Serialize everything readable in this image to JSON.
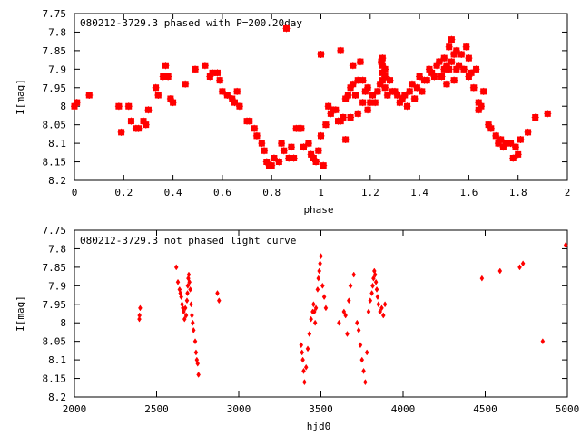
{
  "chart_data": [
    {
      "type": "scatter",
      "title": "080212-3729.3 phased with P=200.20day",
      "xlabel": "phase",
      "ylabel": "I[mag]",
      "xlim": [
        0,
        2
      ],
      "ylim": [
        8.2,
        7.75
      ],
      "y_inverted": true,
      "grid": false,
      "marker_color": "#ff0000",
      "xticks": [
        0,
        0.2,
        0.4,
        0.6,
        0.8,
        1,
        1.2,
        1.4,
        1.6,
        1.8,
        2
      ],
      "xtick_labels": [
        "0",
        "0.2",
        "0.4",
        "0.6",
        "0.8",
        "1",
        "1.2",
        "1.4",
        "1.6",
        "1.8",
        "2"
      ],
      "yticks": [
        7.75,
        7.8,
        7.85,
        7.9,
        7.95,
        8,
        8.05,
        8.1,
        8.15,
        8.2
      ],
      "ytick_labels": [
        "7.75",
        "7.8",
        "7.85",
        "7.9",
        "7.95",
        "8",
        "8.05",
        "8.1",
        "8.15",
        "8.2"
      ],
      "series": [
        {
          "points": [
            [
              0.0,
              8.0
            ],
            [
              0.01,
              7.99
            ],
            [
              0.06,
              7.97
            ],
            [
              0.18,
              8.0
            ],
            [
              0.19,
              8.07
            ],
            [
              0.22,
              8.0
            ],
            [
              0.23,
              8.04
            ],
            [
              0.25,
              8.06
            ],
            [
              0.26,
              8.06
            ],
            [
              0.28,
              8.04
            ],
            [
              0.29,
              8.05
            ],
            [
              0.3,
              8.01
            ],
            [
              0.33,
              7.95
            ],
            [
              0.34,
              7.97
            ],
            [
              0.36,
              7.92
            ],
            [
              0.37,
              7.89
            ],
            [
              0.38,
              7.92
            ],
            [
              0.39,
              7.98
            ],
            [
              0.4,
              7.99
            ],
            [
              0.45,
              7.94
            ],
            [
              0.49,
              7.9
            ],
            [
              0.53,
              7.89
            ],
            [
              0.55,
              7.92
            ],
            [
              0.56,
              7.91
            ],
            [
              0.58,
              7.91
            ],
            [
              0.59,
              7.93
            ],
            [
              0.6,
              7.96
            ],
            [
              0.62,
              7.97
            ],
            [
              0.64,
              7.98
            ],
            [
              0.65,
              7.99
            ],
            [
              0.66,
              7.96
            ],
            [
              0.67,
              8.0
            ],
            [
              0.7,
              8.04
            ],
            [
              0.71,
              8.04
            ],
            [
              0.73,
              8.06
            ],
            [
              0.74,
              8.08
            ],
            [
              0.76,
              8.1
            ],
            [
              0.77,
              8.12
            ],
            [
              0.78,
              8.15
            ],
            [
              0.79,
              8.16
            ],
            [
              0.8,
              8.16
            ],
            [
              0.81,
              8.14
            ],
            [
              0.83,
              8.15
            ],
            [
              0.84,
              8.1
            ],
            [
              0.85,
              8.12
            ],
            [
              0.86,
              7.79
            ],
            [
              0.87,
              8.14
            ],
            [
              0.88,
              8.11
            ],
            [
              0.89,
              8.14
            ],
            [
              0.9,
              8.06
            ],
            [
              0.91,
              8.06
            ],
            [
              0.92,
              8.06
            ],
            [
              0.93,
              8.11
            ],
            [
              0.95,
              8.1
            ],
            [
              0.96,
              8.13
            ],
            [
              0.97,
              8.14
            ],
            [
              0.98,
              8.15
            ],
            [
              0.99,
              8.12
            ],
            [
              1.0,
              7.86
            ],
            [
              1.0,
              8.08
            ],
            [
              1.01,
              8.16
            ],
            [
              1.02,
              8.05
            ],
            [
              1.03,
              8.0
            ],
            [
              1.04,
              8.02
            ],
            [
              1.05,
              8.01
            ],
            [
              1.06,
              8.01
            ],
            [
              1.07,
              8.04
            ],
            [
              1.08,
              8.04
            ],
            [
              1.08,
              7.85
            ],
            [
              1.09,
              8.03
            ],
            [
              1.1,
              7.98
            ],
            [
              1.1,
              8.09
            ],
            [
              1.11,
              7.97
            ],
            [
              1.12,
              7.95
            ],
            [
              1.12,
              8.03
            ],
            [
              1.13,
              7.94
            ],
            [
              1.13,
              7.89
            ],
            [
              1.14,
              7.97
            ],
            [
              1.15,
              7.93
            ],
            [
              1.15,
              8.02
            ],
            [
              1.16,
              7.88
            ],
            [
              1.17,
              7.99
            ],
            [
              1.17,
              7.93
            ],
            [
              1.18,
              7.96
            ],
            [
              1.19,
              7.95
            ],
            [
              1.19,
              8.01
            ],
            [
              1.2,
              7.99
            ],
            [
              1.21,
              7.97
            ],
            [
              1.22,
              7.99
            ],
            [
              1.23,
              7.96
            ],
            [
              1.24,
              7.94
            ],
            [
              1.245,
              7.88
            ],
            [
              1.25,
              7.87
            ],
            [
              1.25,
              7.89
            ],
            [
              1.25,
              7.91
            ],
            [
              1.25,
              7.93
            ],
            [
              1.26,
              7.9
            ],
            [
              1.26,
              7.92
            ],
            [
              1.26,
              7.95
            ],
            [
              1.27,
              7.97
            ],
            [
              1.28,
              7.93
            ],
            [
              1.29,
              7.96
            ],
            [
              1.3,
              7.96
            ],
            [
              1.31,
              7.97
            ],
            [
              1.32,
              7.99
            ],
            [
              1.33,
              7.98
            ],
            [
              1.34,
              7.97
            ],
            [
              1.35,
              8.0
            ],
            [
              1.36,
              7.96
            ],
            [
              1.37,
              7.94
            ],
            [
              1.38,
              7.98
            ],
            [
              1.39,
              7.95
            ],
            [
              1.4,
              7.92
            ],
            [
              1.41,
              7.96
            ],
            [
              1.42,
              7.93
            ],
            [
              1.43,
              7.93
            ],
            [
              1.44,
              7.9
            ],
            [
              1.45,
              7.91
            ],
            [
              1.46,
              7.92
            ],
            [
              1.47,
              7.89
            ],
            [
              1.48,
              7.88
            ],
            [
              1.49,
              7.92
            ],
            [
              1.5,
              7.9
            ],
            [
              1.5,
              7.87
            ],
            [
              1.51,
              7.89
            ],
            [
              1.51,
              7.94
            ],
            [
              1.52,
              7.84
            ],
            [
              1.52,
              7.9
            ],
            [
              1.53,
              7.82
            ],
            [
              1.53,
              7.88
            ],
            [
              1.54,
              7.86
            ],
            [
              1.54,
              7.93
            ],
            [
              1.55,
              7.9
            ],
            [
              1.55,
              7.85
            ],
            [
              1.56,
              7.89
            ],
            [
              1.57,
              7.86
            ],
            [
              1.58,
              7.9
            ],
            [
              1.59,
              7.84
            ],
            [
              1.6,
              7.87
            ],
            [
              1.6,
              7.92
            ],
            [
              1.61,
              7.91
            ],
            [
              1.62,
              7.95
            ],
            [
              1.63,
              7.9
            ],
            [
              1.64,
              7.99
            ],
            [
              1.64,
              8.01
            ],
            [
              1.65,
              8.0
            ],
            [
              1.66,
              7.96
            ],
            [
              1.68,
              8.05
            ],
            [
              1.69,
              8.06
            ],
            [
              1.71,
              8.08
            ],
            [
              1.72,
              8.1
            ],
            [
              1.73,
              8.09
            ],
            [
              1.74,
              8.11
            ],
            [
              1.75,
              8.1
            ],
            [
              1.77,
              8.1
            ],
            [
              1.78,
              8.14
            ],
            [
              1.79,
              8.11
            ],
            [
              1.8,
              8.13
            ],
            [
              1.81,
              8.09
            ],
            [
              1.84,
              8.07
            ],
            [
              1.87,
              8.03
            ],
            [
              1.92,
              8.02
            ]
          ]
        }
      ]
    },
    {
      "type": "scatter",
      "title": "080212-3729.3 not phased light curve",
      "xlabel": "hjd0",
      "ylabel": "I[mag]",
      "xlim": [
        2000,
        5000
      ],
      "ylim": [
        8.2,
        7.75
      ],
      "y_inverted": true,
      "grid": false,
      "marker_color": "#ff0000",
      "xticks": [
        2000,
        2500,
        3000,
        3500,
        4000,
        4500,
        5000
      ],
      "xtick_labels": [
        "2000",
        "2500",
        "3000",
        "3500",
        "4000",
        "4500",
        "5000"
      ],
      "yticks": [
        7.75,
        7.8,
        7.85,
        7.9,
        7.95,
        8,
        8.05,
        8.1,
        8.15,
        8.2
      ],
      "ytick_labels": [
        "7.75",
        "7.8",
        "7.85",
        "7.9",
        "7.95",
        "8",
        "8.05",
        "8.1",
        "8.15",
        "8.2"
      ],
      "series": [
        {
          "points": [
            [
              2395,
              7.99
            ],
            [
              2396,
              7.98
            ],
            [
              2400,
              7.96
            ],
            [
              2620,
              7.85
            ],
            [
              2630,
              7.89
            ],
            [
              2640,
              7.91
            ],
            [
              2645,
              7.92
            ],
            [
              2650,
              7.93
            ],
            [
              2655,
              7.95
            ],
            [
              2660,
              7.96
            ],
            [
              2665,
              7.97
            ],
            [
              2670,
              7.99
            ],
            [
              2675,
              7.96
            ],
            [
              2680,
              7.98
            ],
            [
              2685,
              7.94
            ],
            [
              2688,
              7.92
            ],
            [
              2690,
              7.9
            ],
            [
              2693,
              7.88
            ],
            [
              2696,
              7.87
            ],
            [
              2700,
              7.89
            ],
            [
              2705,
              7.91
            ],
            [
              2710,
              7.95
            ],
            [
              2715,
              7.98
            ],
            [
              2720,
              8.0
            ],
            [
              2725,
              8.02
            ],
            [
              2735,
              8.05
            ],
            [
              2740,
              8.08
            ],
            [
              2745,
              8.1
            ],
            [
              2750,
              8.11
            ],
            [
              2755,
              8.14
            ],
            [
              2870,
              7.92
            ],
            [
              2880,
              7.94
            ],
            [
              3380,
              8.06
            ],
            [
              3385,
              8.08
            ],
            [
              3390,
              8.1
            ],
            [
              3395,
              8.13
            ],
            [
              3400,
              8.16
            ],
            [
              3410,
              8.12
            ],
            [
              3420,
              8.07
            ],
            [
              3430,
              8.03
            ],
            [
              3440,
              7.99
            ],
            [
              3450,
              7.97
            ],
            [
              3455,
              7.95
            ],
            [
              3460,
              7.97
            ],
            [
              3465,
              8.0
            ],
            [
              3470,
              7.96
            ],
            [
              3480,
              7.91
            ],
            [
              3485,
              7.88
            ],
            [
              3490,
              7.86
            ],
            [
              3495,
              7.84
            ],
            [
              3500,
              7.82
            ],
            [
              3510,
              7.9
            ],
            [
              3520,
              7.93
            ],
            [
              3530,
              7.96
            ],
            [
              3610,
              8.0
            ],
            [
              3640,
              7.97
            ],
            [
              3650,
              7.98
            ],
            [
              3660,
              8.03
            ],
            [
              3670,
              7.94
            ],
            [
              3680,
              7.9
            ],
            [
              3700,
              7.87
            ],
            [
              3720,
              8.0
            ],
            [
              3730,
              8.02
            ],
            [
              3740,
              8.06
            ],
            [
              3750,
              8.1
            ],
            [
              3760,
              8.13
            ],
            [
              3770,
              8.16
            ],
            [
              3780,
              8.08
            ],
            [
              3790,
              7.97
            ],
            [
              3800,
              7.94
            ],
            [
              3810,
              7.92
            ],
            [
              3815,
              7.9
            ],
            [
              3820,
              7.88
            ],
            [
              3825,
              7.86
            ],
            [
              3830,
              7.87
            ],
            [
              3835,
              7.89
            ],
            [
              3840,
              7.91
            ],
            [
              3845,
              7.93
            ],
            [
              3850,
              7.95
            ],
            [
              3860,
              7.97
            ],
            [
              3870,
              7.96
            ],
            [
              3880,
              7.98
            ],
            [
              3890,
              7.95
            ],
            [
              4480,
              7.88
            ],
            [
              4590,
              7.86
            ],
            [
              4710,
              7.85
            ],
            [
              4730,
              7.84
            ],
            [
              4850,
              8.05
            ],
            [
              4990,
              7.79
            ]
          ]
        }
      ]
    }
  ]
}
